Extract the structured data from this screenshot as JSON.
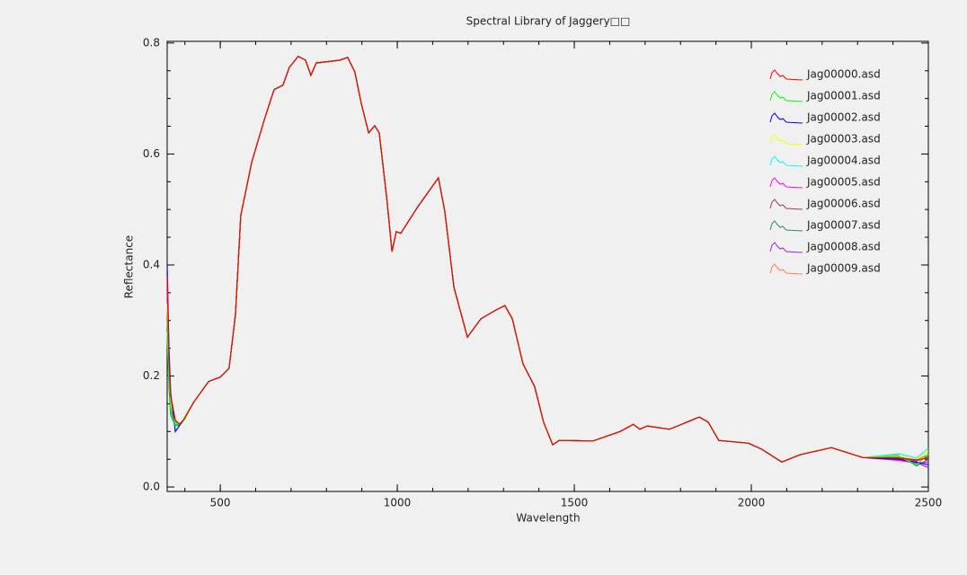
{
  "chart_data": {
    "type": "line",
    "title": "Spectral Library of Jaggery□□",
    "x_label": "Wavelength",
    "y_label": "Reflectance",
    "x": [
      350,
      355,
      360,
      373,
      386,
      398,
      424,
      467,
      500,
      525,
      543,
      558,
      589,
      627,
      652,
      677,
      695,
      720,
      741,
      756,
      771,
      837,
      860,
      880,
      898,
      919,
      936,
      949,
      970,
      985,
      997,
      1010,
      1058,
      1116,
      1134,
      1160,
      1198,
      1236,
      1279,
      1304,
      1325,
      1355,
      1388,
      1413,
      1439,
      1457,
      1553,
      1629,
      1667,
      1685,
      1706,
      1769,
      1853,
      1878,
      1908,
      1992,
      2030,
      2086,
      2137,
      2226,
      2315,
      2416,
      2467,
      2500
    ],
    "series": [
      {
        "name": "Jag00000.asd",
        "color": "#ff0000",
        "values": [
          0.38,
          0.23,
          0.165,
          0.12,
          0.113,
          0.123,
          0.152,
          0.19,
          0.198,
          0.214,
          0.311,
          0.489,
          0.586,
          0.667,
          0.716,
          0.724,
          0.756,
          0.776,
          0.769,
          0.742,
          0.764,
          0.769,
          0.774,
          0.748,
          0.692,
          0.638,
          0.651,
          0.638,
          0.521,
          0.424,
          0.46,
          0.457,
          0.505,
          0.557,
          0.497,
          0.36,
          0.27,
          0.303,
          0.319,
          0.327,
          0.303,
          0.222,
          0.181,
          0.117,
          0.076,
          0.084,
          0.083,
          0.1,
          0.113,
          0.104,
          0.11,
          0.104,
          0.126,
          0.117,
          0.084,
          0.079,
          0.068,
          0.045,
          0.058,
          0.071,
          0.053,
          0.052,
          0.049,
          0.052
        ]
      },
      {
        "name": "Jag00001.asd",
        "color": "#00ff00",
        "values": [
          0.3,
          0.2,
          0.14,
          0.11,
          0.115,
          0.12,
          0.152,
          0.19,
          0.198,
          0.214,
          0.311,
          0.489,
          0.586,
          0.667,
          0.716,
          0.724,
          0.756,
          0.776,
          0.769,
          0.742,
          0.764,
          0.769,
          0.774,
          0.748,
          0.692,
          0.638,
          0.651,
          0.638,
          0.521,
          0.424,
          0.46,
          0.457,
          0.505,
          0.557,
          0.497,
          0.36,
          0.27,
          0.303,
          0.319,
          0.327,
          0.303,
          0.222,
          0.181,
          0.117,
          0.076,
          0.084,
          0.083,
          0.1,
          0.113,
          0.104,
          0.11,
          0.104,
          0.126,
          0.117,
          0.084,
          0.079,
          0.068,
          0.045,
          0.058,
          0.071,
          0.053,
          0.055,
          0.04,
          0.06
        ]
      },
      {
        "name": "Jag00002.asd",
        "color": "#0000ff",
        "values": [
          0.4,
          0.25,
          0.17,
          0.1,
          0.112,
          0.121,
          0.152,
          0.19,
          0.198,
          0.214,
          0.311,
          0.489,
          0.586,
          0.667,
          0.716,
          0.724,
          0.756,
          0.776,
          0.769,
          0.742,
          0.764,
          0.769,
          0.774,
          0.748,
          0.692,
          0.638,
          0.651,
          0.638,
          0.521,
          0.424,
          0.46,
          0.457,
          0.505,
          0.557,
          0.497,
          0.36,
          0.27,
          0.303,
          0.319,
          0.327,
          0.303,
          0.222,
          0.181,
          0.117,
          0.076,
          0.084,
          0.083,
          0.1,
          0.113,
          0.104,
          0.11,
          0.104,
          0.126,
          0.117,
          0.084,
          0.079,
          0.068,
          0.045,
          0.058,
          0.071,
          0.053,
          0.05,
          0.045,
          0.04
        ]
      },
      {
        "name": "Jag00003.asd",
        "color": "#ffff00",
        "values": [
          0.33,
          0.21,
          0.15,
          0.12,
          0.114,
          0.123,
          0.152,
          0.19,
          0.198,
          0.214,
          0.311,
          0.489,
          0.586,
          0.667,
          0.716,
          0.724,
          0.756,
          0.776,
          0.769,
          0.742,
          0.764,
          0.769,
          0.774,
          0.748,
          0.692,
          0.638,
          0.651,
          0.638,
          0.521,
          0.424,
          0.46,
          0.457,
          0.505,
          0.557,
          0.497,
          0.36,
          0.27,
          0.303,
          0.319,
          0.327,
          0.303,
          0.222,
          0.181,
          0.117,
          0.076,
          0.084,
          0.083,
          0.1,
          0.113,
          0.104,
          0.11,
          0.104,
          0.126,
          0.117,
          0.084,
          0.079,
          0.068,
          0.045,
          0.058,
          0.071,
          0.053,
          0.056,
          0.05,
          0.065
        ]
      },
      {
        "name": "Jag00004.asd",
        "color": "#00ffff",
        "values": [
          0.28,
          0.19,
          0.15,
          0.115,
          0.113,
          0.122,
          0.152,
          0.19,
          0.198,
          0.214,
          0.311,
          0.489,
          0.586,
          0.667,
          0.716,
          0.724,
          0.756,
          0.776,
          0.769,
          0.742,
          0.764,
          0.769,
          0.774,
          0.748,
          0.692,
          0.638,
          0.651,
          0.638,
          0.521,
          0.424,
          0.46,
          0.457,
          0.505,
          0.557,
          0.497,
          0.36,
          0.27,
          0.303,
          0.319,
          0.327,
          0.303,
          0.222,
          0.181,
          0.117,
          0.076,
          0.084,
          0.083,
          0.1,
          0.113,
          0.104,
          0.11,
          0.104,
          0.126,
          0.117,
          0.084,
          0.079,
          0.068,
          0.045,
          0.058,
          0.071,
          0.053,
          0.06,
          0.052,
          0.07
        ]
      },
      {
        "name": "Jag00005.asd",
        "color": "#ff00ff",
        "values": [
          0.35,
          0.22,
          0.16,
          0.12,
          0.113,
          0.123,
          0.152,
          0.19,
          0.198,
          0.214,
          0.311,
          0.489,
          0.586,
          0.667,
          0.716,
          0.724,
          0.756,
          0.776,
          0.769,
          0.742,
          0.764,
          0.769,
          0.774,
          0.748,
          0.692,
          0.638,
          0.651,
          0.638,
          0.521,
          0.424,
          0.46,
          0.457,
          0.505,
          0.557,
          0.497,
          0.36,
          0.27,
          0.303,
          0.319,
          0.327,
          0.303,
          0.222,
          0.181,
          0.117,
          0.076,
          0.084,
          0.083,
          0.1,
          0.113,
          0.104,
          0.11,
          0.104,
          0.126,
          0.117,
          0.084,
          0.079,
          0.068,
          0.045,
          0.058,
          0.071,
          0.053,
          0.048,
          0.043,
          0.045
        ]
      },
      {
        "name": "Jag00006.asd",
        "color": "#b03060",
        "values": [
          0.36,
          0.22,
          0.16,
          0.118,
          0.113,
          0.123,
          0.152,
          0.19,
          0.198,
          0.214,
          0.311,
          0.489,
          0.586,
          0.667,
          0.716,
          0.724,
          0.756,
          0.776,
          0.769,
          0.742,
          0.764,
          0.769,
          0.774,
          0.748,
          0.692,
          0.638,
          0.651,
          0.638,
          0.521,
          0.424,
          0.46,
          0.457,
          0.505,
          0.557,
          0.497,
          0.36,
          0.27,
          0.303,
          0.319,
          0.327,
          0.303,
          0.222,
          0.181,
          0.117,
          0.076,
          0.084,
          0.083,
          0.1,
          0.113,
          0.104,
          0.11,
          0.104,
          0.126,
          0.117,
          0.084,
          0.079,
          0.068,
          0.045,
          0.058,
          0.071,
          0.053,
          0.053,
          0.047,
          0.055
        ]
      },
      {
        "name": "Jag00007.asd",
        "color": "#2e8b57",
        "values": [
          0.27,
          0.18,
          0.13,
          0.11,
          0.112,
          0.122,
          0.152,
          0.19,
          0.198,
          0.214,
          0.311,
          0.489,
          0.586,
          0.667,
          0.716,
          0.724,
          0.756,
          0.776,
          0.769,
          0.742,
          0.764,
          0.769,
          0.774,
          0.748,
          0.692,
          0.638,
          0.651,
          0.638,
          0.521,
          0.424,
          0.46,
          0.457,
          0.505,
          0.557,
          0.497,
          0.36,
          0.27,
          0.303,
          0.319,
          0.327,
          0.303,
          0.222,
          0.181,
          0.117,
          0.076,
          0.084,
          0.083,
          0.1,
          0.113,
          0.104,
          0.11,
          0.104,
          0.126,
          0.117,
          0.084,
          0.079,
          0.068,
          0.045,
          0.058,
          0.071,
          0.053,
          0.057,
          0.038,
          0.05
        ]
      },
      {
        "name": "Jag00008.asd",
        "color": "#a020f0",
        "values": [
          0.34,
          0.21,
          0.15,
          0.112,
          0.113,
          0.122,
          0.152,
          0.19,
          0.198,
          0.214,
          0.311,
          0.489,
          0.586,
          0.667,
          0.716,
          0.724,
          0.756,
          0.776,
          0.769,
          0.742,
          0.764,
          0.769,
          0.774,
          0.748,
          0.692,
          0.638,
          0.651,
          0.638,
          0.521,
          0.424,
          0.46,
          0.457,
          0.505,
          0.557,
          0.497,
          0.36,
          0.27,
          0.303,
          0.319,
          0.327,
          0.303,
          0.222,
          0.181,
          0.117,
          0.076,
          0.084,
          0.083,
          0.1,
          0.113,
          0.104,
          0.11,
          0.104,
          0.126,
          0.117,
          0.084,
          0.079,
          0.068,
          0.045,
          0.058,
          0.071,
          0.053,
          0.051,
          0.044,
          0.035
        ]
      },
      {
        "name": "Jag00009.asd",
        "color": "#ff7f50",
        "values": [
          0.37,
          0.23,
          0.16,
          0.12,
          0.113,
          0.123,
          0.152,
          0.19,
          0.198,
          0.214,
          0.311,
          0.489,
          0.586,
          0.667,
          0.716,
          0.724,
          0.756,
          0.776,
          0.769,
          0.742,
          0.764,
          0.769,
          0.774,
          0.748,
          0.692,
          0.638,
          0.651,
          0.638,
          0.521,
          0.424,
          0.46,
          0.457,
          0.505,
          0.557,
          0.497,
          0.36,
          0.27,
          0.303,
          0.319,
          0.327,
          0.303,
          0.222,
          0.181,
          0.117,
          0.076,
          0.084,
          0.083,
          0.1,
          0.113,
          0.104,
          0.11,
          0.104,
          0.126,
          0.117,
          0.084,
          0.079,
          0.068,
          0.045,
          0.058,
          0.071,
          0.053,
          0.054,
          0.05,
          0.058
        ]
      }
    ],
    "xlim": [
      350,
      2500
    ],
    "ylim": [
      -0.008,
      0.803
    ],
    "xticks": [
      500,
      1000,
      1500,
      2000,
      2500
    ],
    "yticks": [
      {
        "value": 0,
        "label": "0.0"
      },
      0.2,
      0.4,
      0.6,
      0.8
    ],
    "legend": "upper right"
  }
}
